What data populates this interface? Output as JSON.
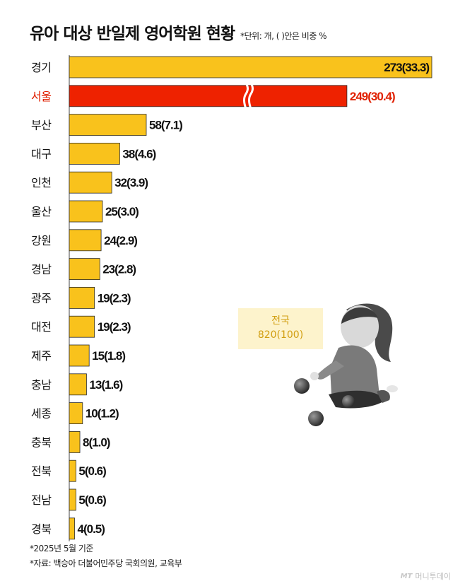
{
  "title": "유아 대상 반일제 영어학원 현황",
  "unit_note": "*단위: 개, ( )안은 비중 %",
  "callout": {
    "label": "전국",
    "value": "820(100)"
  },
  "notes": [
    "*2025년 5월 기준",
    "*자료: 백승아 더불어민주당 국회의원, 교육부"
  ],
  "source_logo": {
    "mark": "MT",
    "name": "머니투데이"
  },
  "colors": {
    "bar": "#f9c21c",
    "highlight": "#ee2200",
    "highlight_text": "#e02000"
  },
  "chart_data": {
    "type": "bar",
    "orientation": "horizontal",
    "title": "유아 대상 반일제 영어학원 현황",
    "categories": [
      "경기",
      "서울",
      "부산",
      "대구",
      "인천",
      "울산",
      "강원",
      "경남",
      "광주",
      "대전",
      "제주",
      "충남",
      "세종",
      "충북",
      "전북",
      "전남",
      "경북"
    ],
    "values": [
      273,
      249,
      58,
      38,
      32,
      25,
      24,
      23,
      19,
      19,
      15,
      13,
      10,
      8,
      5,
      5,
      4
    ],
    "shares": [
      33.3,
      30.4,
      7.1,
      4.6,
      3.9,
      3.0,
      2.9,
      2.8,
      2.3,
      2.3,
      1.8,
      1.6,
      1.2,
      1.0,
      0.6,
      0.6,
      0.5
    ],
    "value_labels": [
      "273(33.3)",
      "249(30.4)",
      "58(7.1)",
      "38(4.6)",
      "32(3.9)",
      "25(3.0)",
      "24(2.9)",
      "23(2.8)",
      "19(2.3)",
      "19(2.3)",
      "15(1.8)",
      "13(1.6)",
      "10(1.2)",
      "8(1.0)",
      "5(0.6)",
      "5(0.6)",
      "4(0.5)"
    ],
    "highlight_category": "서울",
    "axis_break_category": "서울",
    "xlim": [
      0,
      273
    ],
    "grid": false,
    "legend": "none"
  }
}
